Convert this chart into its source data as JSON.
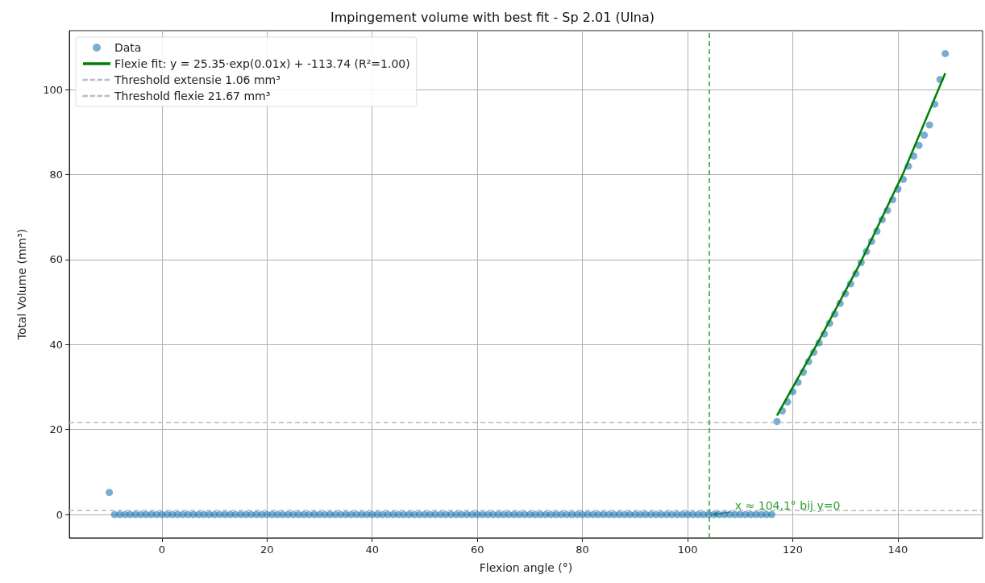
{
  "chart_data": {
    "type": "scatter",
    "title": "Impingement volume with best fit - Sp 2.01 (Ulna)",
    "xlabel": "Flexion angle (°)",
    "ylabel": "Total Volume (mm³)",
    "xlim": [
      -17.6,
      156.1
    ],
    "ylim": [
      -5.5,
      113.9
    ],
    "xticks": [
      0,
      20,
      40,
      60,
      80,
      100,
      120,
      140
    ],
    "yticks": [
      0,
      20,
      40,
      60,
      80,
      100
    ],
    "grid": true,
    "legend": "top left",
    "series": [
      {
        "name": "Data",
        "type": "scatter",
        "marker": "circle",
        "color": "#1f77b4",
        "x": [
          -10,
          -9,
          -8,
          -7,
          -6,
          -5,
          -4,
          -3,
          -2,
          -1,
          0,
          1,
          2,
          3,
          4,
          5,
          6,
          7,
          8,
          9,
          10,
          11,
          12,
          13,
          14,
          15,
          16,
          17,
          18,
          19,
          20,
          21,
          22,
          23,
          24,
          25,
          26,
          27,
          28,
          29,
          30,
          31,
          32,
          33,
          34,
          35,
          36,
          37,
          38,
          39,
          40,
          41,
          42,
          43,
          44,
          45,
          46,
          47,
          48,
          49,
          50,
          51,
          52,
          53,
          54,
          55,
          56,
          57,
          58,
          59,
          60,
          61,
          62,
          63,
          64,
          65,
          66,
          67,
          68,
          69,
          70,
          71,
          72,
          73,
          74,
          75,
          76,
          77,
          78,
          79,
          80,
          81,
          82,
          83,
          84,
          85,
          86,
          87,
          88,
          89,
          90,
          91,
          92,
          93,
          94,
          95,
          96,
          97,
          98,
          99,
          100,
          101,
          102,
          103,
          104,
          105,
          106,
          107,
          108,
          109,
          110,
          111,
          112,
          113,
          114,
          115,
          116,
          117,
          118,
          119,
          120,
          121,
          122,
          123,
          124,
          125,
          126,
          127,
          128,
          129,
          130,
          131,
          132,
          133,
          134,
          135,
          136,
          137,
          138,
          139,
          140,
          141,
          142,
          143,
          144,
          145,
          146,
          147,
          148,
          149
        ],
        "values": [
          5.2,
          0,
          0,
          0,
          0,
          0,
          0,
          0,
          0,
          0,
          0,
          0,
          0,
          0,
          0,
          0,
          0,
          0,
          0,
          0,
          0,
          0,
          0,
          0,
          0,
          0,
          0,
          0,
          0,
          0,
          0,
          0,
          0,
          0,
          0,
          0,
          0,
          0,
          0,
          0,
          0,
          0,
          0,
          0,
          0,
          0,
          0,
          0,
          0,
          0,
          0,
          0,
          0,
          0,
          0,
          0,
          0,
          0,
          0,
          0,
          0,
          0,
          0,
          0,
          0,
          0,
          0,
          0,
          0,
          0,
          0,
          0,
          0,
          0,
          0,
          0,
          0,
          0,
          0,
          0,
          0,
          0,
          0,
          0,
          0,
          0,
          0,
          0,
          0,
          0,
          0,
          0,
          0,
          0,
          0,
          0,
          0,
          0,
          0,
          0,
          0,
          0,
          0,
          0,
          0,
          0,
          0,
          0,
          0,
          0,
          0,
          0,
          0,
          0,
          0,
          0,
          0,
          0,
          0,
          0,
          0,
          0,
          0,
          0,
          0,
          0,
          0,
          21.9,
          24.4,
          26.5,
          28.9,
          31.1,
          33.5,
          36.0,
          38.2,
          40.4,
          42.5,
          45.0,
          47.2,
          49.7,
          52.0,
          54.3,
          56.7,
          59.3,
          61.9,
          64.3,
          66.7,
          69.4,
          71.6,
          74.1,
          76.6,
          78.9,
          82.0,
          84.4,
          86.9,
          89.3,
          91.7,
          96.6,
          102.4,
          108.5
        ]
      },
      {
        "name": "Flexie fit: y = 25.35·exp(0.01x) + -113.74 (R²=1.00)",
        "type": "line",
        "marker": "none",
        "line_style": "solid",
        "color": "#008000",
        "x": [
          117,
          125,
          133,
          141,
          149
        ],
        "values": [
          23.3,
          41.0,
          59.6,
          80.3,
          103.9
        ]
      }
    ],
    "ref_lines": [
      {
        "axis": "y",
        "value": 1.06,
        "label": "Threshold extensie 1.06 mm³",
        "color": "#bbbbbb",
        "line_style": "dashed"
      },
      {
        "axis": "y",
        "value": 21.67,
        "label": "Threshold flexie 21.67 mm³",
        "color": "#bbbbbb",
        "line_style": "dashed"
      },
      {
        "axis": "x",
        "value": 104.1,
        "color": "#2ca02c",
        "line_style": "dashed"
      }
    ],
    "annotations": [
      {
        "text": "x ≈ 104.1° bij y=0",
        "x": 104.1,
        "y": 0
      }
    ]
  }
}
